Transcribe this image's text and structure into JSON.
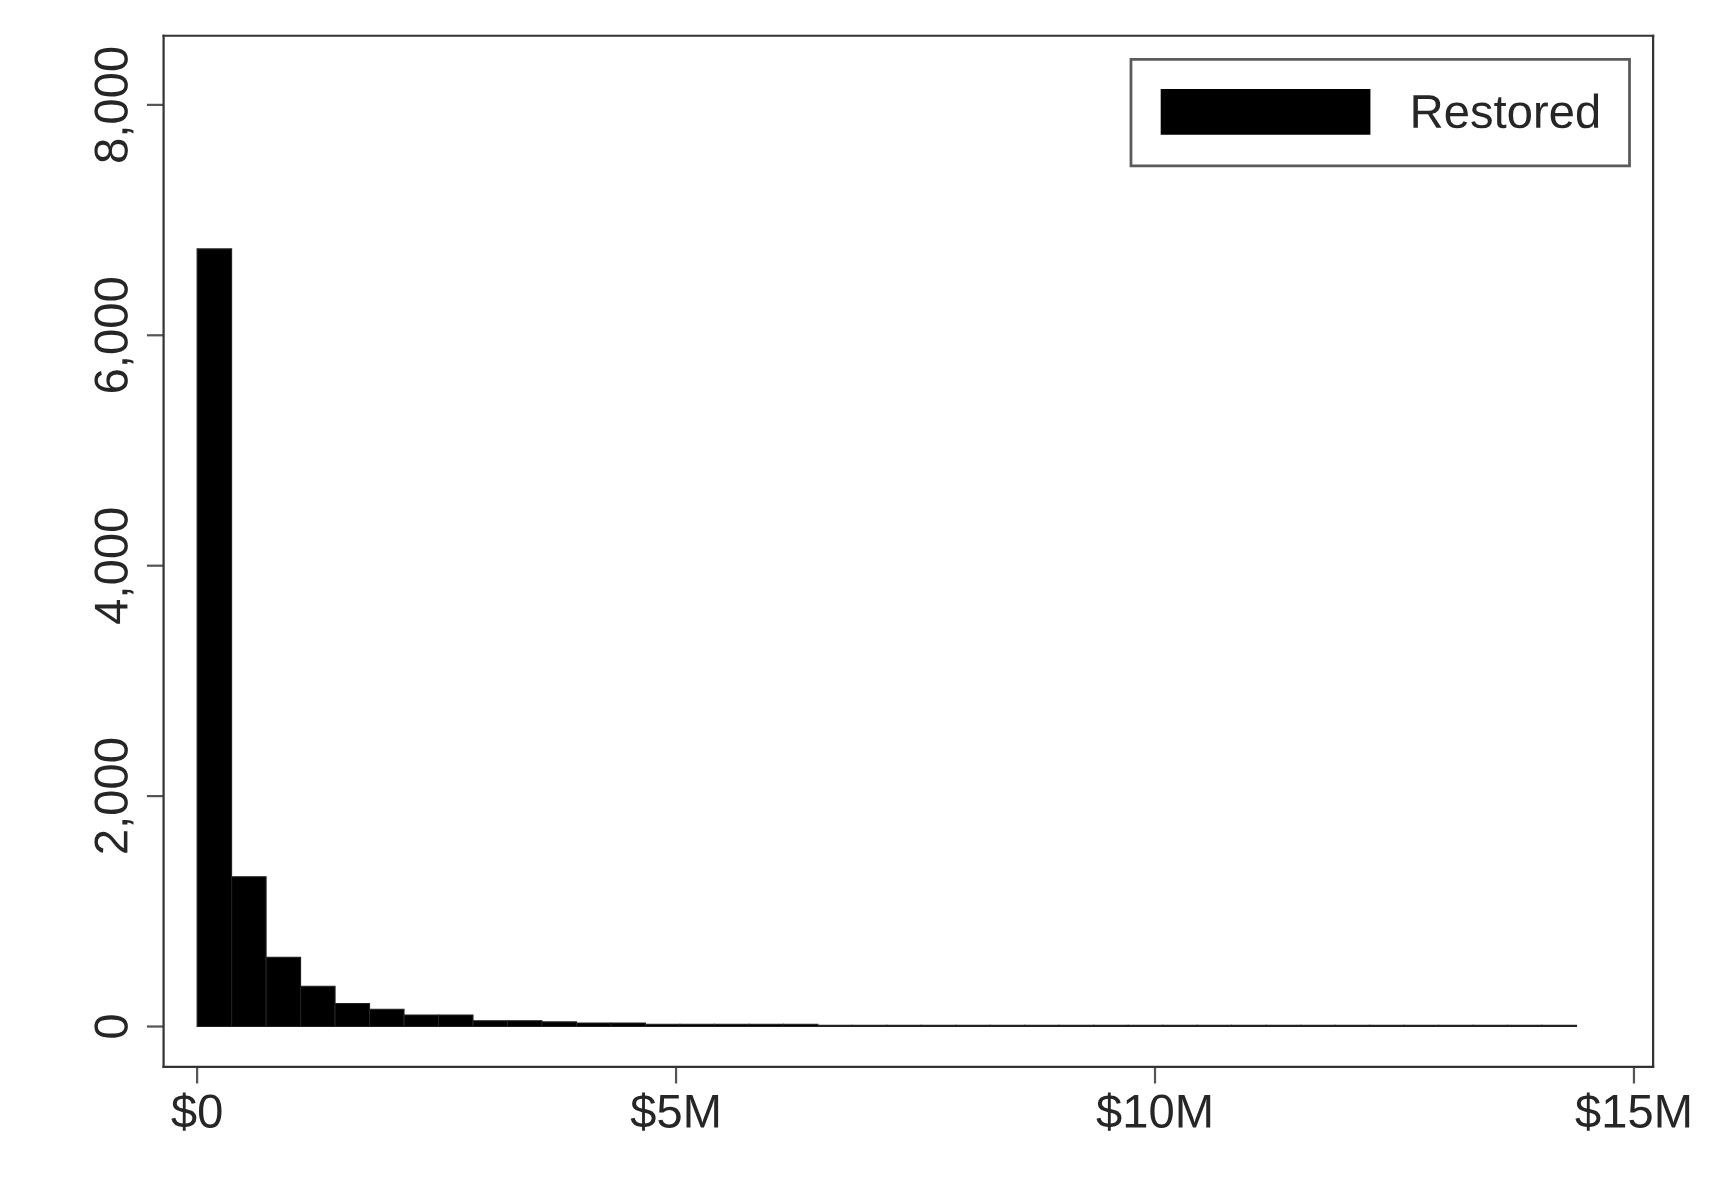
{
  "chart_data": {
    "type": "histogram",
    "bins": [
      0,
      0.36,
      0.72,
      1.08,
      1.44,
      1.8,
      2.16,
      2.52,
      2.88,
      3.24,
      3.6,
      3.96,
      4.32,
      4.68,
      5.04,
      5.4,
      5.76,
      6.12,
      6.48,
      6.84,
      7.2,
      7.56,
      7.92,
      8.28,
      8.64,
      9.0,
      9.36,
      9.72,
      10.08,
      10.44,
      10.8,
      11.16,
      11.52,
      11.88,
      12.24,
      12.6,
      12.96,
      13.32,
      13.68,
      14.04,
      14.4
    ],
    "series": [
      {
        "name": "Restored",
        "color": "#000000",
        "values": [
          6750,
          1300,
          600,
          350,
          200,
          150,
          100,
          100,
          50,
          50,
          40,
          30,
          30,
          20,
          20,
          20,
          20,
          20,
          10,
          10,
          10,
          10,
          10,
          10,
          10,
          10,
          10,
          10,
          10,
          10,
          10,
          10,
          10,
          10,
          10,
          10,
          10,
          10,
          10,
          10
        ]
      }
    ],
    "xlim": [
      -0.35,
      15.2
    ],
    "xticks": [
      {
        "value": 0,
        "label": "$0"
      },
      {
        "value": 5,
        "label": "$5M"
      },
      {
        "value": 10,
        "label": "$10M"
      },
      {
        "value": 15,
        "label": "$15M"
      }
    ],
    "ylim": [
      -350,
      8600
    ],
    "yticks": [
      {
        "value": 0,
        "label": "0"
      },
      {
        "value": 2000,
        "label": "2,000"
      },
      {
        "value": 4000,
        "label": "4,000"
      },
      {
        "value": 6000,
        "label": "6,000"
      },
      {
        "value": 8000,
        "label": "8,000"
      }
    ],
    "grid": false,
    "legend": "top right"
  }
}
